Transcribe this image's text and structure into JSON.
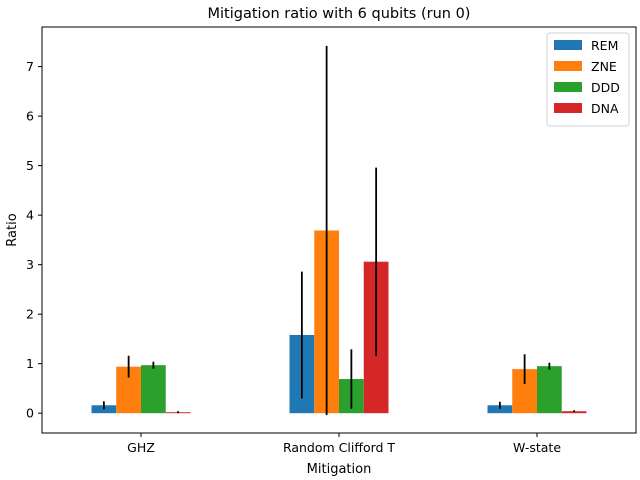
{
  "chart_data": {
    "type": "bar",
    "title": "Mitigation ratio with 6 qubits (run 0)",
    "xlabel": "Mitigation",
    "ylabel": "Ratio",
    "categories": [
      "GHZ",
      "Random Clifford T",
      "W-state"
    ],
    "ylim": [
      -0.4,
      7.8
    ],
    "yticks": [
      0,
      1,
      2,
      3,
      4,
      5,
      6,
      7
    ],
    "grid": false,
    "legend_position": "top-right",
    "series": [
      {
        "name": "REM",
        "color": "#1f77b4",
        "values": [
          0.16,
          1.58,
          0.16
        ],
        "errors": [
          0.08,
          1.28,
          0.07
        ]
      },
      {
        "name": "ZNE",
        "color": "#ff7f0e",
        "values": [
          0.94,
          3.69,
          0.89
        ],
        "errors": [
          0.22,
          3.73,
          0.3
        ]
      },
      {
        "name": "DDD",
        "color": "#2ca02c",
        "values": [
          0.97,
          0.69,
          0.95
        ],
        "errors": [
          0.07,
          0.6,
          0.07
        ]
      },
      {
        "name": "DNA",
        "color": "#d62728",
        "values": [
          0.02,
          3.06,
          0.04
        ],
        "errors": [
          0.02,
          1.9,
          0.02
        ]
      }
    ]
  }
}
